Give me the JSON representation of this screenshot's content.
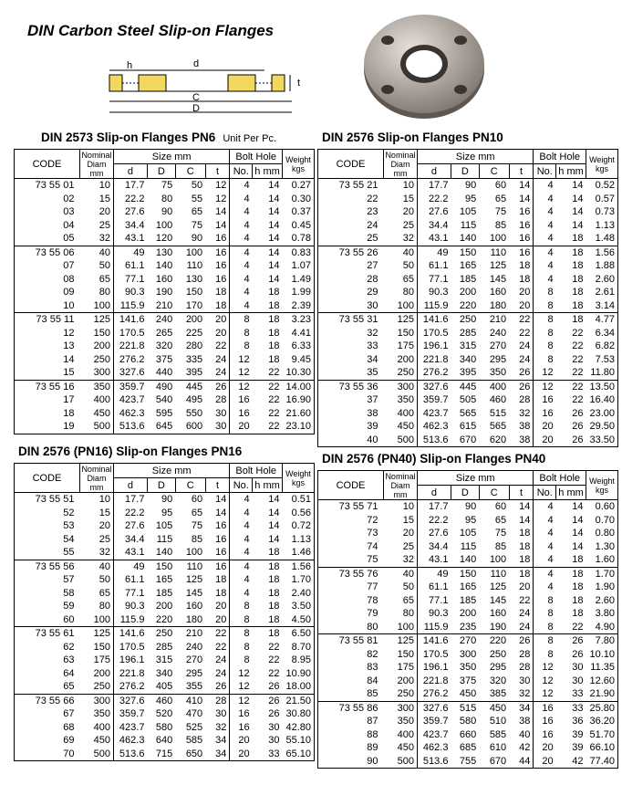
{
  "header": {
    "title": "DIN Carbon Steel Slip-on Flanges"
  },
  "diagram": {
    "labels": {
      "h": "h",
      "d": "d",
      "t": "t",
      "C": "C",
      "D": "D"
    }
  },
  "columns": {
    "code": "CODE",
    "nominal": "Nominal Diam mm",
    "size": "Size mm",
    "d": "d",
    "D": "D",
    "C": "C",
    "t": "t",
    "bolt_hole": "Bolt Hole",
    "no": "No.",
    "h": "h mm",
    "weight": "Weight kgs"
  },
  "tables": [
    {
      "title": "DIN 2573 Slip-on Flanges PN6",
      "note": "Unit Per Pc.",
      "rows": [
        [
          "73 55 01",
          "10",
          "17.7",
          "75",
          "50",
          "12",
          "4",
          "14",
          "0.27"
        ],
        [
          "02",
          "15",
          "22.2",
          "80",
          "55",
          "12",
          "4",
          "14",
          "0.30"
        ],
        [
          "03",
          "20",
          "27.6",
          "90",
          "65",
          "14",
          "4",
          "14",
          "0.37"
        ],
        [
          "04",
          "25",
          "34.4",
          "100",
          "75",
          "14",
          "4",
          "14",
          "0.45"
        ],
        [
          "05",
          "32",
          "43.1",
          "120",
          "90",
          "16",
          "4",
          "14",
          "0.78"
        ],
        [
          "73 55 06",
          "40",
          "49",
          "130",
          "100",
          "16",
          "4",
          "14",
          "0.83"
        ],
        [
          "07",
          "50",
          "61.1",
          "140",
          "110",
          "16",
          "4",
          "14",
          "1.07"
        ],
        [
          "08",
          "65",
          "77.1",
          "160",
          "130",
          "16",
          "4",
          "14",
          "1.49"
        ],
        [
          "09",
          "80",
          "90.3",
          "190",
          "150",
          "18",
          "4",
          "18",
          "1.99"
        ],
        [
          "10",
          "100",
          "115.9",
          "210",
          "170",
          "18",
          "4",
          "18",
          "2.39"
        ],
        [
          "73 55 11",
          "125",
          "141.6",
          "240",
          "200",
          "20",
          "8",
          "18",
          "3.23"
        ],
        [
          "12",
          "150",
          "170.5",
          "265",
          "225",
          "20",
          "8",
          "18",
          "4.41"
        ],
        [
          "13",
          "200",
          "221.8",
          "320",
          "280",
          "22",
          "8",
          "18",
          "6.33"
        ],
        [
          "14",
          "250",
          "276.2",
          "375",
          "335",
          "24",
          "12",
          "18",
          "9.45"
        ],
        [
          "15",
          "300",
          "327.6",
          "440",
          "395",
          "24",
          "12",
          "22",
          "10.30"
        ],
        [
          "73 55 16",
          "350",
          "359.7",
          "490",
          "445",
          "26",
          "12",
          "22",
          "14.00"
        ],
        [
          "17",
          "400",
          "423.7",
          "540",
          "495",
          "28",
          "16",
          "22",
          "16.90"
        ],
        [
          "18",
          "450",
          "462.3",
          "595",
          "550",
          "30",
          "16",
          "22",
          "21.60"
        ],
        [
          "19",
          "500",
          "513.6",
          "645",
          "600",
          "30",
          "20",
          "22",
          "23.10"
        ]
      ]
    },
    {
      "title": "DIN 2576 Slip-on Flanges PN10",
      "rows": [
        [
          "73 55 21",
          "10",
          "17.7",
          "90",
          "60",
          "14",
          "4",
          "14",
          "0.52"
        ],
        [
          "22",
          "15",
          "22.2",
          "95",
          "65",
          "14",
          "4",
          "14",
          "0.57"
        ],
        [
          "23",
          "20",
          "27.6",
          "105",
          "75",
          "16",
          "4",
          "14",
          "0.73"
        ],
        [
          "24",
          "25",
          "34.4",
          "115",
          "85",
          "16",
          "4",
          "14",
          "1.13"
        ],
        [
          "25",
          "32",
          "43.1",
          "140",
          "100",
          "16",
          "4",
          "18",
          "1.48"
        ],
        [
          "73 55 26",
          "40",
          "49",
          "150",
          "110",
          "16",
          "4",
          "18",
          "1.56"
        ],
        [
          "27",
          "50",
          "61.1",
          "165",
          "125",
          "18",
          "4",
          "18",
          "1.88"
        ],
        [
          "28",
          "65",
          "77.1",
          "185",
          "145",
          "18",
          "4",
          "18",
          "2.60"
        ],
        [
          "29",
          "80",
          "90.3",
          "200",
          "160",
          "20",
          "8",
          "18",
          "2.61"
        ],
        [
          "30",
          "100",
          "115.9",
          "220",
          "180",
          "20",
          "8",
          "18",
          "3.14"
        ],
        [
          "73 55 31",
          "125",
          "141.6",
          "250",
          "210",
          "22",
          "8",
          "18",
          "4.77"
        ],
        [
          "32",
          "150",
          "170.5",
          "285",
          "240",
          "22",
          "8",
          "22",
          "6.34"
        ],
        [
          "33",
          "175",
          "196.1",
          "315",
          "270",
          "24",
          "8",
          "22",
          "6.82"
        ],
        [
          "34",
          "200",
          "221.8",
          "340",
          "295",
          "24",
          "8",
          "22",
          "7.53"
        ],
        [
          "35",
          "250",
          "276.2",
          "395",
          "350",
          "26",
          "12",
          "22",
          "11.80"
        ],
        [
          "73 55 36",
          "300",
          "327.6",
          "445",
          "400",
          "26",
          "12",
          "22",
          "13.50"
        ],
        [
          "37",
          "350",
          "359.7",
          "505",
          "460",
          "28",
          "16",
          "22",
          "16.40"
        ],
        [
          "38",
          "400",
          "423.7",
          "565",
          "515",
          "32",
          "16",
          "26",
          "23.00"
        ],
        [
          "39",
          "450",
          "462.3",
          "615",
          "565",
          "38",
          "20",
          "26",
          "29.50"
        ],
        [
          "40",
          "500",
          "513.6",
          "670",
          "620",
          "38",
          "20",
          "26",
          "33.50"
        ]
      ]
    },
    {
      "title": "DIN 2576 (PN16) Slip-on Flanges PN16",
      "rows": [
        [
          "73 55 51",
          "10",
          "17.7",
          "90",
          "60",
          "14",
          "4",
          "14",
          "0.51"
        ],
        [
          "52",
          "15",
          "22.2",
          "95",
          "65",
          "14",
          "4",
          "14",
          "0.56"
        ],
        [
          "53",
          "20",
          "27.6",
          "105",
          "75",
          "16",
          "4",
          "14",
          "0.72"
        ],
        [
          "54",
          "25",
          "34.4",
          "115",
          "85",
          "16",
          "4",
          "14",
          "1.13"
        ],
        [
          "55",
          "32",
          "43.1",
          "140",
          "100",
          "16",
          "4",
          "18",
          "1.46"
        ],
        [
          "73 55 56",
          "40",
          "49",
          "150",
          "110",
          "16",
          "4",
          "18",
          "1.56"
        ],
        [
          "57",
          "50",
          "61.1",
          "165",
          "125",
          "18",
          "4",
          "18",
          "1.70"
        ],
        [
          "58",
          "65",
          "77.1",
          "185",
          "145",
          "18",
          "4",
          "18",
          "2.40"
        ],
        [
          "59",
          "80",
          "90.3",
          "200",
          "160",
          "20",
          "8",
          "18",
          "3.50"
        ],
        [
          "60",
          "100",
          "115.9",
          "220",
          "180",
          "20",
          "8",
          "18",
          "4.50"
        ],
        [
          "73 55 61",
          "125",
          "141.6",
          "250",
          "210",
          "22",
          "8",
          "18",
          "6.50"
        ],
        [
          "62",
          "150",
          "170.5",
          "285",
          "240",
          "22",
          "8",
          "22",
          "8.70"
        ],
        [
          "63",
          "175",
          "196.1",
          "315",
          "270",
          "24",
          "8",
          "22",
          "8.95"
        ],
        [
          "64",
          "200",
          "221.8",
          "340",
          "295",
          "24",
          "12",
          "22",
          "10.90"
        ],
        [
          "65",
          "250",
          "276.2",
          "405",
          "355",
          "26",
          "12",
          "26",
          "18.00"
        ],
        [
          "73 55 66",
          "300",
          "327.6",
          "460",
          "410",
          "28",
          "12",
          "26",
          "21.50"
        ],
        [
          "67",
          "350",
          "359.7",
          "520",
          "470",
          "30",
          "16",
          "26",
          "30.80"
        ],
        [
          "68",
          "400",
          "423.7",
          "580",
          "525",
          "32",
          "16",
          "30",
          "42.80"
        ],
        [
          "69",
          "450",
          "462.3",
          "640",
          "585",
          "34",
          "20",
          "30",
          "55.10"
        ],
        [
          "70",
          "500",
          "513.6",
          "715",
          "650",
          "34",
          "20",
          "33",
          "65.10"
        ]
      ]
    },
    {
      "title": "DIN 2576 (PN40) Slip-on Flanges PN40",
      "rows": [
        [
          "73 55 71",
          "10",
          "17.7",
          "90",
          "60",
          "14",
          "4",
          "14",
          "0.60"
        ],
        [
          "72",
          "15",
          "22.2",
          "95",
          "65",
          "14",
          "4",
          "14",
          "0.70"
        ],
        [
          "73",
          "20",
          "27.6",
          "105",
          "75",
          "18",
          "4",
          "14",
          "0.80"
        ],
        [
          "74",
          "25",
          "34.4",
          "115",
          "85",
          "18",
          "4",
          "14",
          "1.30"
        ],
        [
          "75",
          "32",
          "43.1",
          "140",
          "100",
          "18",
          "4",
          "18",
          "1.60"
        ],
        [
          "73 55 76",
          "40",
          "49",
          "150",
          "110",
          "18",
          "4",
          "18",
          "1.70"
        ],
        [
          "77",
          "50",
          "61.1",
          "165",
          "125",
          "20",
          "4",
          "18",
          "1.90"
        ],
        [
          "78",
          "65",
          "77.1",
          "185",
          "145",
          "22",
          "8",
          "18",
          "2.60"
        ],
        [
          "79",
          "80",
          "90.3",
          "200",
          "160",
          "24",
          "8",
          "18",
          "3.80"
        ],
        [
          "80",
          "100",
          "115.9",
          "235",
          "190",
          "24",
          "8",
          "22",
          "4.90"
        ],
        [
          "73 55 81",
          "125",
          "141.6",
          "270",
          "220",
          "26",
          "8",
          "26",
          "7.80"
        ],
        [
          "82",
          "150",
          "170.5",
          "300",
          "250",
          "28",
          "8",
          "26",
          "10.10"
        ],
        [
          "83",
          "175",
          "196.1",
          "350",
          "295",
          "28",
          "12",
          "30",
          "11.35"
        ],
        [
          "84",
          "200",
          "221.8",
          "375",
          "320",
          "30",
          "12",
          "30",
          "12.60"
        ],
        [
          "85",
          "250",
          "276.2",
          "450",
          "385",
          "32",
          "12",
          "33",
          "21.90"
        ],
        [
          "73 55 86",
          "300",
          "327.6",
          "515",
          "450",
          "34",
          "16",
          "33",
          "25.80"
        ],
        [
          "87",
          "350",
          "359.7",
          "580",
          "510",
          "38",
          "16",
          "36",
          "36.20"
        ],
        [
          "88",
          "400",
          "423.7",
          "660",
          "585",
          "40",
          "16",
          "39",
          "51.70"
        ],
        [
          "89",
          "450",
          "462.3",
          "685",
          "610",
          "42",
          "20",
          "39",
          "66.10"
        ],
        [
          "90",
          "500",
          "513.6",
          "755",
          "670",
          "44",
          "20",
          "42",
          "77.40"
        ]
      ]
    }
  ]
}
